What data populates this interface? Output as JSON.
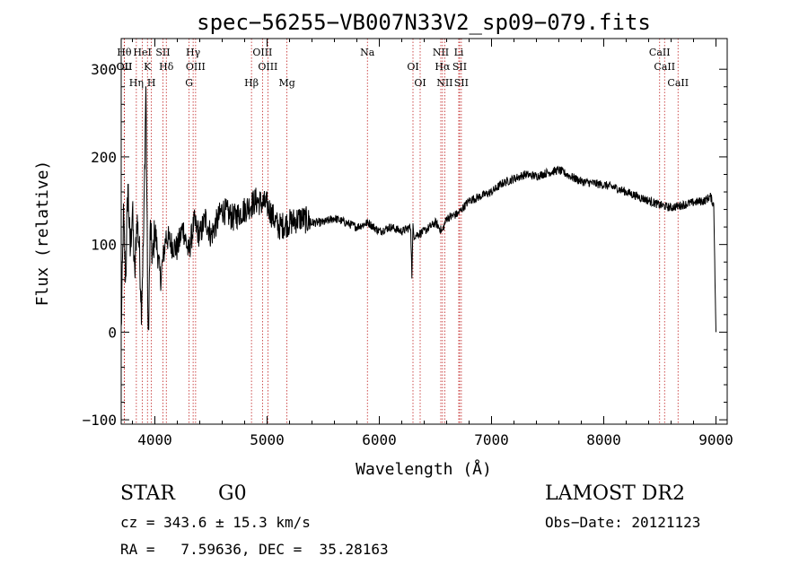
{
  "chart_data": {
    "type": "line",
    "title": "spec−56255−VB007N33V2_sp09−079.fits",
    "xlabel": "Wavelength (Å)",
    "ylabel": "Flux (relative)",
    "xlim": [
      3700,
      9100
    ],
    "ylim": [
      -105,
      335
    ],
    "xticks": [
      4000,
      5000,
      6000,
      7000,
      8000,
      9000
    ],
    "yticks": [
      -100,
      0,
      100,
      200,
      300
    ],
    "ytick_labels": [
      "−100",
      "0",
      "100",
      "200",
      "300"
    ],
    "lines": [
      {
        "labels": [
          "Hθ",
          "OII"
        ],
        "wave": 3727
      },
      {
        "labels": [
          "OII"
        ],
        "wave": 3729
      },
      {
        "labels": [
          "Hη"
        ],
        "wave": 3835
      },
      {
        "labels": [
          "HeI"
        ],
        "wave": 3889
      },
      {
        "labels": [
          "K"
        ],
        "wave": 3934
      },
      {
        "labels": [
          "H"
        ],
        "wave": 3969
      },
      {
        "labels": [
          "SII"
        ],
        "wave": 4072
      },
      {
        "labels": [
          "Hδ"
        ],
        "wave": 4102
      },
      {
        "labels": [
          "G"
        ],
        "wave": 4305
      },
      {
        "labels": [
          "Hγ"
        ],
        "wave": 4341
      },
      {
        "labels": [
          "OIII"
        ],
        "wave": 4363
      },
      {
        "labels": [
          "Hβ"
        ],
        "wave": 4861
      },
      {
        "labels": [
          "OIII"
        ],
        "wave": 4959
      },
      {
        "labels": [
          "OIII"
        ],
        "wave": 5007
      },
      {
        "labels": [
          "Mg"
        ],
        "wave": 5177
      },
      {
        "labels": [
          "Na"
        ],
        "wave": 5894
      },
      {
        "labels": [
          "OI"
        ],
        "wave": 6300
      },
      {
        "labels": [
          "OI"
        ],
        "wave": 6364
      },
      {
        "labels": [
          "NII"
        ],
        "wave": 6548
      },
      {
        "labels": [
          "Hα"
        ],
        "wave": 6563
      },
      {
        "labels": [
          "NII"
        ],
        "wave": 6583
      },
      {
        "labels": [
          "Li"
        ],
        "wave": 6708
      },
      {
        "labels": [
          "SII"
        ],
        "wave": 6716
      },
      {
        "labels": [
          "SII"
        ],
        "wave": 6731
      },
      {
        "labels": [
          "CaII"
        ],
        "wave": 8498
      },
      {
        "labels": [
          "CaII"
        ],
        "wave": 8542
      },
      {
        "labels": [
          "CaII"
        ],
        "wave": 8662
      }
    ],
    "series": [
      {
        "name": "flux",
        "x": [
          3700,
          3720,
          3740,
          3760,
          3780,
          3800,
          3820,
          3840,
          3860,
          3880,
          3900,
          3920,
          3940,
          3960,
          3980,
          4000,
          4050,
          4100,
          4150,
          4200,
          4250,
          4300,
          4350,
          4400,
          4450,
          4500,
          4600,
          4700,
          4800,
          4900,
          5000,
          5100,
          5200,
          5300,
          5400,
          5500,
          5600,
          5700,
          5800,
          5900,
          6000,
          6100,
          6200,
          6280,
          6290,
          6300,
          6310,
          6400,
          6500,
          6560,
          6600,
          6700,
          6800,
          6900,
          7000,
          7100,
          7200,
          7300,
          7400,
          7500,
          7600,
          7700,
          7800,
          7900,
          8000,
          8100,
          8200,
          8300,
          8400,
          8500,
          8600,
          8700,
          8800,
          8900,
          8950,
          8980,
          9000
        ],
        "y": [
          0,
          130,
          60,
          170,
          90,
          140,
          60,
          130,
          100,
          30,
          110,
          280,
          -15,
          120,
          80,
          120,
          60,
          110,
          100,
          95,
          120,
          90,
          125,
          110,
          130,
          110,
          140,
          130,
          140,
          150,
          145,
          120,
          125,
          130,
          125,
          125,
          130,
          125,
          120,
          125,
          115,
          120,
          115,
          120,
          65,
          120,
          110,
          115,
          125,
          115,
          130,
          135,
          150,
          155,
          160,
          170,
          175,
          180,
          178,
          182,
          185,
          178,
          172,
          170,
          168,
          165,
          160,
          155,
          150,
          145,
          142,
          145,
          148,
          150,
          155,
          145,
          0
        ]
      }
    ]
  },
  "info": {
    "object_class": "STAR",
    "subclass": "G0",
    "survey": "LAMOST DR2",
    "cz_text": "cz = 343.6 ± 15.3 km/s",
    "obs_date": "Obs−Date: 20121123",
    "coords": "RA =   7.59636, DEC =  35.28163"
  }
}
